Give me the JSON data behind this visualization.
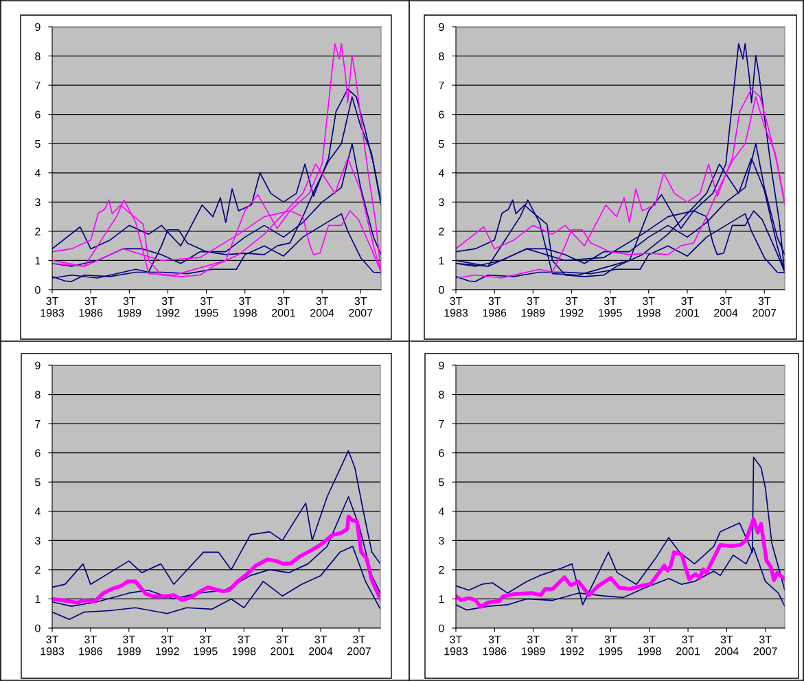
{
  "chart_data": [
    {
      "type": "line",
      "xlim": [
        "1983-07",
        "2009-02"
      ],
      "ylim": [
        0,
        9
      ],
      "yticks": [
        0,
        1,
        2,
        3,
        4,
        5,
        6,
        7,
        8,
        9
      ],
      "grid": "y",
      "xticks": [
        {
          "value": "1983-07",
          "label": "3T\n1983"
        },
        {
          "value": "1986-07",
          "label": "3T\n1986"
        },
        {
          "value": "1989-07",
          "label": "3T\n1989"
        },
        {
          "value": "1992-07",
          "label": "3T\n1992"
        },
        {
          "value": "1995-07",
          "label": "3T\n1995"
        },
        {
          "value": "1998-07",
          "label": "3T\n1998"
        },
        {
          "value": "2001-07",
          "label": "3T\n2001"
        },
        {
          "value": "2004-07",
          "label": "3T\n2004"
        },
        {
          "value": "2007-07",
          "label": "3T\n2007"
        }
      ],
      "series": [
        {
          "color": "#000080",
          "x": [
            "1983-07",
            "1985-09",
            "1986-07",
            "1988-01",
            "1989-07",
            "1991-01",
            "1992-01",
            "1993-07",
            "1995-03",
            "1996-01",
            "1996-08",
            "1997-01",
            "1997-07",
            "1998-01",
            "1999-01",
            "1999-09",
            "2000-07",
            "2001-07",
            "2002-07",
            "2003-03",
            "2003-11",
            "2005-01",
            "2005-08",
            "2006-07",
            "2007-03",
            "2007-11",
            "2008-07",
            "2009-02"
          ],
          "values": [
            1.4,
            2.15,
            1.4,
            1.7,
            2.2,
            1.9,
            2.2,
            1.5,
            2.9,
            2.5,
            3.15,
            2.3,
            3.45,
            2.7,
            2.9,
            4.0,
            3.3,
            3.0,
            3.3,
            4.3,
            3.2,
            4.5,
            6.1,
            6.87,
            6.6,
            5.5,
            4.3,
            2.9
          ]
        },
        {
          "color": "#000080",
          "x": [
            "1983-07",
            "1984-07",
            "1985-01",
            "1986-01",
            "1988-01",
            "1990-01",
            "1992-01",
            "1994-01",
            "1996-01",
            "1997-11",
            "1998-07",
            "2000-01",
            "2001-07",
            "2003-01",
            "2004-07",
            "2006-01",
            "2006-07",
            "2007-07",
            "2008-07",
            "2009-02"
          ],
          "values": [
            0.45,
            0.3,
            0.28,
            0.5,
            0.45,
            0.6,
            0.6,
            0.55,
            0.7,
            0.7,
            1.2,
            1.5,
            1.15,
            1.8,
            2.2,
            2.6,
            2.0,
            1.1,
            0.6,
            0.58
          ]
        },
        {
          "color": "#000080",
          "x": [
            "1983-07",
            "1985-01",
            "1987-01",
            "1989-01",
            "1990-07",
            "1992-01",
            "1993-07",
            "1995-01",
            "1997-01",
            "1998-07",
            "2000-01",
            "2001-07",
            "2003-01",
            "2004-07",
            "2006-01",
            "2006-11",
            "2007-07",
            "2008-07",
            "2009-02"
          ],
          "values": [
            0.9,
            0.8,
            1.0,
            1.4,
            1.4,
            1.2,
            0.9,
            1.3,
            1.3,
            1.8,
            2.2,
            1.8,
            2.3,
            3.0,
            3.5,
            5.0,
            3.5,
            1.8,
            1.2
          ]
        },
        {
          "color": "#000080",
          "x": [
            "1983-07",
            "1985-01",
            "1987-01",
            "1989-01",
            "1990-01",
            "1991-01",
            "1992-01",
            "1992-07",
            "1993-05",
            "1994-01",
            "1995-07",
            "1997-01",
            "1998-07",
            "2000-01",
            "2001-01",
            "2002-01",
            "2003-01",
            "2004-01",
            "2005-01",
            "2006-01",
            "2006-11",
            "2007-07",
            "2008-05",
            "2009-02"
          ],
          "values": [
            0.4,
            0.5,
            0.4,
            0.6,
            0.7,
            0.6,
            1.5,
            2.05,
            2.05,
            1.6,
            1.3,
            1.2,
            1.25,
            1.2,
            1.5,
            1.6,
            2.5,
            3.5,
            4.4,
            5.0,
            6.6,
            5.6,
            4.7,
            3.0
          ]
        },
        {
          "color": "#ff00ff",
          "x": [
            "1983-07",
            "1986-01",
            "1989-01",
            "1992-01",
            "1995-01",
            "1998-01",
            "2000-01",
            "2002-01",
            "2003-07",
            "2004-07",
            "2005-07",
            "2005-11",
            "2006-01",
            "2006-05",
            "2006-07",
            "2006-11",
            "2007-02",
            "2007-07",
            "2008-02",
            "2008-09",
            "2009-02"
          ],
          "values": [
            1.0,
            0.8,
            1.4,
            1.0,
            1.1,
            1.9,
            2.5,
            2.7,
            3.3,
            4.3,
            8.42,
            7.9,
            8.42,
            7.27,
            6.4,
            8.02,
            7.35,
            5.93,
            4.0,
            2.32,
            0.56
          ]
        },
        {
          "color": "#ff00ff",
          "x": [
            "1983-07",
            "1985-01",
            "1986-07",
            "1987-02",
            "1987-08",
            "1987-12",
            "1988-03",
            "1988-11",
            "1989-05",
            "1990-08",
            "1991-01",
            "1992-01",
            "1993-07",
            "1995-01",
            "1996-01",
            "1998-01",
            "2000-01",
            "2001-07",
            "2003-01",
            "2004-01",
            "2005-07",
            "2006-07",
            "2007-07",
            "2008-07",
            "2009-02"
          ],
          "values": [
            1.3,
            1.4,
            1.7,
            2.62,
            2.75,
            3.07,
            2.6,
            2.9,
            2.7,
            2.24,
            1.0,
            0.5,
            0.45,
            0.5,
            0.8,
            1.2,
            1.9,
            2.6,
            3.3,
            4.3,
            3.3,
            4.5,
            3.4,
            1.5,
            0.6
          ]
        },
        {
          "color": "#ff00ff",
          "x": [
            "1983-07",
            "1986-01",
            "1988-07",
            "1989-02",
            "1990-01",
            "1991-01",
            "1993-01",
            "1995-01",
            "1997-01",
            "1998-07",
            "1999-07",
            "2001-01",
            "2002-01",
            "2003-01",
            "2003-07",
            "2003-11",
            "2004-05",
            "2005-01",
            "2006-01",
            "2006-09",
            "2007-05",
            "2008-05",
            "2009-02"
          ],
          "values": [
            0.9,
            0.8,
            2.5,
            3.07,
            2.3,
            0.55,
            0.5,
            0.75,
            1.0,
            2.7,
            3.25,
            2.1,
            2.7,
            2.5,
            1.6,
            1.2,
            1.25,
            2.2,
            2.2,
            2.7,
            2.4,
            1.4,
            0.6
          ]
        }
      ]
    },
    {
      "type": "line",
      "xlim": [
        "1983-07",
        "2009-02"
      ],
      "ylim": [
        0,
        9
      ],
      "yticks": [
        0,
        1,
        2,
        3,
        4,
        5,
        6,
        7,
        8,
        9
      ],
      "grid": "y",
      "xticks": [
        {
          "value": "1983-07",
          "label": "3T\n1983"
        },
        {
          "value": "1986-07",
          "label": "3T\n1986"
        },
        {
          "value": "1989-07",
          "label": "3T\n1989"
        },
        {
          "value": "1992-07",
          "label": "3T\n1992"
        },
        {
          "value": "1995-07",
          "label": "3T\n1995"
        },
        {
          "value": "1998-07",
          "label": "3T\n1998"
        },
        {
          "value": "2001-07",
          "label": "3T\n2001"
        },
        {
          "value": "2004-07",
          "label": "3T\n2004"
        },
        {
          "value": "2007-07",
          "label": "3T\n2007"
        }
      ],
      "series": [
        {
          "color": "#000080",
          "x": [
            "1983-07",
            "1986-01",
            "1989-01",
            "1992-01",
            "1995-01",
            "1998-01",
            "2000-01",
            "2002-01",
            "2003-07",
            "2004-07",
            "2005-07",
            "2005-11",
            "2006-01",
            "2006-05",
            "2006-07",
            "2006-11",
            "2007-02",
            "2007-07",
            "2008-02",
            "2008-09",
            "2009-02"
          ],
          "values": [
            1.0,
            0.8,
            1.4,
            1.0,
            1.1,
            1.9,
            2.5,
            2.7,
            3.3,
            4.3,
            8.42,
            7.9,
            8.42,
            7.27,
            6.4,
            8.02,
            7.35,
            5.93,
            4.0,
            2.32,
            0.56
          ]
        },
        {
          "color": "#000080",
          "x": [
            "1983-07",
            "1985-01",
            "1986-07",
            "1987-02",
            "1987-08",
            "1987-12",
            "1988-03",
            "1988-11",
            "1989-05",
            "1990-08",
            "1991-01",
            "1992-01",
            "1993-07",
            "1995-01",
            "1996-01",
            "1998-01",
            "2000-01",
            "2001-07",
            "2003-01",
            "2004-01",
            "2005-07",
            "2006-07",
            "2007-07",
            "2008-07",
            "2009-02"
          ],
          "values": [
            1.3,
            1.4,
            1.7,
            2.62,
            2.75,
            3.07,
            2.6,
            2.9,
            2.7,
            2.24,
            1.0,
            0.5,
            0.45,
            0.5,
            0.8,
            1.2,
            1.9,
            2.6,
            3.3,
            4.3,
            3.3,
            4.5,
            3.4,
            1.5,
            0.6
          ]
        },
        {
          "color": "#000080",
          "x": [
            "1983-07",
            "1986-01",
            "1988-07",
            "1989-02",
            "1990-01",
            "1991-01",
            "1993-01",
            "1995-01",
            "1997-01",
            "1998-07",
            "1999-07",
            "2001-01",
            "2002-01",
            "2003-01",
            "2003-07",
            "2003-11",
            "2004-05",
            "2005-01",
            "2006-01",
            "2006-09",
            "2007-05",
            "2008-05",
            "2009-02"
          ],
          "values": [
            0.9,
            0.8,
            2.5,
            3.07,
            2.3,
            0.55,
            0.5,
            0.75,
            1.0,
            2.7,
            3.25,
            2.1,
            2.7,
            2.5,
            1.6,
            1.2,
            1.25,
            2.2,
            2.2,
            2.7,
            2.4,
            1.4,
            0.6
          ]
        },
        {
          "color": "#000080",
          "x": [
            "1983-07",
            "1984-07",
            "1985-01",
            "1986-01",
            "1988-01",
            "1990-01",
            "1992-01",
            "1994-01",
            "1996-01",
            "1997-11",
            "1998-07",
            "2000-01",
            "2001-07",
            "2003-01",
            "2004-07",
            "2006-01",
            "2006-07",
            "2007-07",
            "2008-07",
            "2009-02"
          ],
          "values": [
            0.45,
            0.3,
            0.28,
            0.5,
            0.45,
            0.6,
            0.6,
            0.55,
            0.7,
            0.7,
            1.2,
            1.5,
            1.15,
            1.8,
            2.2,
            2.6,
            2.0,
            1.1,
            0.6,
            0.58
          ]
        },
        {
          "color": "#000080",
          "x": [
            "1983-07",
            "1985-01",
            "1987-01",
            "1989-01",
            "1990-07",
            "1992-01",
            "1993-07",
            "1995-01",
            "1997-01",
            "1998-07",
            "2000-01",
            "2001-07",
            "2003-01",
            "2004-07",
            "2006-01",
            "2006-11",
            "2007-07",
            "2008-07",
            "2009-02"
          ],
          "values": [
            0.9,
            0.8,
            1.0,
            1.4,
            1.4,
            1.2,
            0.9,
            1.3,
            1.3,
            1.8,
            2.2,
            1.8,
            2.3,
            3.0,
            3.5,
            5.0,
            3.5,
            1.8,
            1.2
          ]
        },
        {
          "color": "#ff00ff",
          "x": [
            "1983-07",
            "1985-09",
            "1986-07",
            "1988-01",
            "1989-07",
            "1991-01",
            "1992-01",
            "1993-07",
            "1995-03",
            "1996-01",
            "1996-08",
            "1997-01",
            "1997-07",
            "1998-01",
            "1999-01",
            "1999-09",
            "2000-07",
            "2001-07",
            "2002-07",
            "2003-03",
            "2003-11",
            "2005-01",
            "2005-08",
            "2006-07",
            "2007-03",
            "2007-11",
            "2008-07",
            "2009-02"
          ],
          "values": [
            1.4,
            2.15,
            1.4,
            1.7,
            2.2,
            1.9,
            2.2,
            1.5,
            2.9,
            2.5,
            3.15,
            2.3,
            3.45,
            2.7,
            2.9,
            4.0,
            3.3,
            3.0,
            3.3,
            4.3,
            3.2,
            4.5,
            6.1,
            6.87,
            6.6,
            5.5,
            4.3,
            2.9
          ]
        },
        {
          "color": "#ff00ff",
          "x": [
            "1983-07",
            "1985-01",
            "1987-01",
            "1989-01",
            "1990-01",
            "1991-01",
            "1992-01",
            "1992-07",
            "1993-05",
            "1994-01",
            "1995-07",
            "1997-01",
            "1998-07",
            "2000-01",
            "2001-01",
            "2002-01",
            "2003-01",
            "2004-01",
            "2005-01",
            "2006-01",
            "2006-11",
            "2007-07",
            "2008-05",
            "2009-02"
          ],
          "values": [
            0.4,
            0.5,
            0.4,
            0.6,
            0.7,
            0.6,
            1.5,
            2.05,
            2.05,
            1.6,
            1.3,
            1.2,
            1.25,
            1.2,
            1.5,
            1.6,
            2.5,
            3.5,
            4.4,
            5.0,
            6.6,
            5.6,
            4.7,
            3.0
          ]
        }
      ]
    },
    {
      "type": "line",
      "xlim": [
        "1983-07",
        "2009-03"
      ],
      "ylim": [
        0,
        9
      ],
      "yticks": [
        0,
        1,
        2,
        3,
        4,
        5,
        6,
        7,
        8,
        9
      ],
      "grid": "y",
      "xticks": [
        {
          "value": "1983-07",
          "label": "3T\n1983"
        },
        {
          "value": "1986-07",
          "label": "3T\n1986"
        },
        {
          "value": "1989-07",
          "label": "3T\n1989"
        },
        {
          "value": "1992-07",
          "label": "3T\n1992"
        },
        {
          "value": "1995-07",
          "label": "3T\n1995"
        },
        {
          "value": "1998-07",
          "label": "3T\n1998"
        },
        {
          "value": "2001-07",
          "label": "3T\n2001"
        },
        {
          "value": "2004-07",
          "label": "3T\n2004"
        },
        {
          "value": "2007-07",
          "label": "3T\n2007"
        }
      ],
      "series": [
        {
          "color": "#000080",
          "x": [
            "1983-07",
            "1984-07",
            "1985-12",
            "1986-07",
            "1988-01",
            "1989-07",
            "1990-07",
            "1992-01",
            "1993-01",
            "1995-05",
            "1996-07",
            "1997-07",
            "1999-01",
            "2000-07",
            "2001-07",
            "2003-05",
            "2003-11",
            "2005-01",
            "2006-09",
            "2007-03",
            "2007-11",
            "2008-07",
            "2009-03"
          ],
          "values": [
            1.4,
            1.5,
            2.2,
            1.5,
            1.9,
            2.3,
            1.9,
            2.2,
            1.5,
            2.6,
            2.6,
            2.0,
            3.2,
            3.3,
            3.0,
            4.28,
            3.0,
            4.5,
            6.07,
            5.5,
            4.0,
            2.6,
            2.2
          ]
        },
        {
          "color": "#000080",
          "x": [
            "1983-07",
            "1984-11",
            "1986-01",
            "1988-01",
            "1990-01",
            "1992-07",
            "1994-01",
            "1996-01",
            "1997-07",
            "1998-07",
            "2000-01",
            "2001-07",
            "2003-01",
            "2004-07",
            "2006-01",
            "2007-01",
            "2008-01",
            "2009-03"
          ],
          "values": [
            0.55,
            0.3,
            0.55,
            0.6,
            0.7,
            0.5,
            0.7,
            0.65,
            1.0,
            0.7,
            1.6,
            1.1,
            1.5,
            1.8,
            2.6,
            2.8,
            1.6,
            0.65
          ]
        },
        {
          "color": "#000080",
          "x": [
            "1983-07",
            "1985-01",
            "1987-01",
            "1989-07",
            "1991-01",
            "1993-01",
            "1995-01",
            "1997-01",
            "1999-01",
            "2000-07",
            "2002-01",
            "2003-07",
            "2005-01",
            "2006-09",
            "2007-07",
            "2008-07",
            "2009-03"
          ],
          "values": [
            0.9,
            0.75,
            0.9,
            1.2,
            1.3,
            1.0,
            1.2,
            1.3,
            1.8,
            2.0,
            1.9,
            2.2,
            2.8,
            4.5,
            3.5,
            1.8,
            1.2
          ]
        },
        {
          "color": "#ff00ff",
          "x": [
            "1983-07",
            "1984-05",
            "1985-02",
            "1985-07",
            "1985-12",
            "1986-11",
            "1987-07",
            "1988-03",
            "1988-12",
            "1989-06",
            "1990-01",
            "1990-11",
            "1991-06",
            "1992-06",
            "1993-01",
            "1993-09",
            "1994-05",
            "1995-02",
            "1995-09",
            "1996-03",
            "1996-11",
            "1997-05",
            "1998-01",
            "1998-09",
            "1999-06",
            "2000-05",
            "2001-01",
            "2001-08",
            "2002-03",
            "2002-12",
            "2003-09",
            "2004-05",
            "2004-11",
            "2005-06",
            "2006-03",
            "2006-08",
            "2006-09",
            "2007-01",
            "2007-05",
            "2007-09",
            "2008-02",
            "2008-07",
            "2009-03"
          ],
          "values": [
            1.0,
            0.95,
            0.9,
            0.87,
            0.95,
            0.92,
            1.2,
            1.34,
            1.45,
            1.6,
            1.6,
            1.17,
            1.09,
            1.09,
            1.13,
            0.96,
            1.05,
            1.26,
            1.4,
            1.34,
            1.26,
            1.3,
            1.6,
            1.82,
            2.14,
            2.35,
            2.3,
            2.2,
            2.22,
            2.47,
            2.64,
            2.81,
            2.98,
            3.19,
            3.27,
            3.4,
            3.82,
            3.69,
            3.65,
            2.6,
            2.39,
            1.64,
            1.0
          ]
        }
      ]
    },
    {
      "type": "line",
      "xlim": [
        "1983-07",
        "2009-01"
      ],
      "ylim": [
        0,
        9
      ],
      "yticks": [
        0,
        1,
        2,
        3,
        4,
        5,
        6,
        7,
        8,
        9
      ],
      "grid": "y",
      "xticks": [
        {
          "value": "1983-07",
          "label": "3T\n1983"
        },
        {
          "value": "1986-07",
          "label": "3T\n1986"
        },
        {
          "value": "1989-07",
          "label": "3T\n1989"
        },
        {
          "value": "1992-07",
          "label": "3T\n1992"
        },
        {
          "value": "1995-07",
          "label": "3T\n1995"
        },
        {
          "value": "1998-07",
          "label": "3T\n1998"
        },
        {
          "value": "2001-07",
          "label": "3T\n2001"
        },
        {
          "value": "2004-07",
          "label": "3T\n2004"
        },
        {
          "value": "2007-07",
          "label": "3T\n2007"
        }
      ],
      "series": [
        {
          "color": "#000080",
          "x": [
            "1983-07",
            "1984-07",
            "1985-07",
            "1986-05",
            "1987-07",
            "1989-01",
            "1990-01",
            "1991-09",
            "1992-07",
            "1993-05",
            "1995-05",
            "1996-01",
            "1997-07",
            "1999-01",
            "2000-01",
            "2000-11",
            "2002-01",
            "2003-07",
            "2004-01",
            "2005-07",
            "2006-07",
            "2006-08",
            "2007-03",
            "2007-07",
            "2008-01",
            "2009-01"
          ],
          "values": [
            1.45,
            1.3,
            1.5,
            1.55,
            1.2,
            1.6,
            1.8,
            2.05,
            2.2,
            0.8,
            2.6,
            1.9,
            1.5,
            2.4,
            3.1,
            2.6,
            2.2,
            2.8,
            3.3,
            3.6,
            2.6,
            5.85,
            5.5,
            4.8,
            2.9,
            1.3
          ]
        },
        {
          "color": "#000080",
          "x": [
            "1983-07",
            "1984-05",
            "1986-01",
            "1987-07",
            "1989-01",
            "1991-01",
            "1993-01",
            "1995-01",
            "1996-07",
            "1998-01",
            "2000-01",
            "2001-01",
            "2002-01",
            "2003-07",
            "2004-01",
            "2005-01",
            "2006-01",
            "2006-08",
            "2007-07",
            "2008-07",
            "2009-01"
          ],
          "values": [
            0.8,
            0.62,
            0.75,
            0.8,
            1.0,
            0.95,
            1.2,
            1.1,
            1.05,
            1.35,
            1.7,
            1.5,
            1.6,
            1.95,
            1.8,
            2.5,
            2.2,
            2.75,
            1.6,
            1.2,
            0.75
          ]
        },
        {
          "color": "#ff00ff",
          "x": [
            "1983-07",
            "1983-12",
            "1984-07",
            "1985-01",
            "1985-06",
            "1986-01",
            "1986-11",
            "1987-03",
            "1988-02",
            "1989-06",
            "1990-02",
            "1990-06",
            "1991-01",
            "1991-12",
            "1992-06",
            "1993-01",
            "1993-11",
            "1994-07",
            "1995-07",
            "1996-03",
            "1997-01",
            "1998-02",
            "1998-08",
            "1999-02",
            "1999-09",
            "1999-12",
            "2000-03",
            "2000-06",
            "2001-01",
            "2001-08",
            "2002-02",
            "2002-06",
            "2002-09",
            "2002-12",
            "2004-01",
            "2004-11",
            "2005-08",
            "2006-01",
            "2006-08",
            "2006-12",
            "2007-03",
            "2007-08",
            "2007-12",
            "2008-02",
            "2008-03",
            "2008-06",
            "2009-01"
          ],
          "values": [
            1.09,
            0.96,
            1.03,
            0.96,
            0.73,
            0.88,
            0.92,
            1.09,
            1.17,
            1.2,
            1.13,
            1.34,
            1.34,
            1.74,
            1.47,
            1.59,
            1.13,
            1.43,
            1.72,
            1.38,
            1.34,
            1.47,
            1.51,
            1.8,
            2.14,
            1.97,
            2.14,
            2.6,
            2.52,
            1.68,
            1.85,
            1.72,
            2.01,
            1.89,
            2.85,
            2.81,
            2.85,
            3.02,
            3.73,
            3.27,
            3.57,
            2.31,
            2.1,
            1.8,
            1.64,
            1.89,
            1.68
          ]
        }
      ]
    }
  ]
}
